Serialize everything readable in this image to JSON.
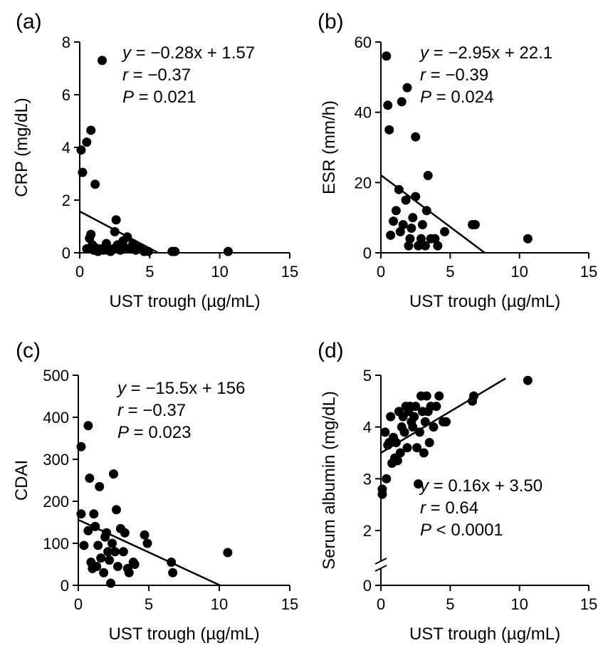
{
  "chart_data": [
    {
      "type": "scatter",
      "panel_label": "(a)",
      "xlabel": "UST trough (µg/mL)",
      "ylabel": "CRP (mg/dL)",
      "xlim": [
        0,
        15
      ],
      "ylim": [
        0,
        8
      ],
      "xticks": [
        0,
        5,
        10,
        15
      ],
      "yticks": [
        0,
        2,
        4,
        6,
        8
      ],
      "annotation": [
        {
          "italic": "y",
          "rest": " = −0.28x + 1.57"
        },
        {
          "italic": "r",
          "rest": " = −0.37"
        },
        {
          "italic": "P",
          "rest": " = 0.021"
        }
      ],
      "regression": {
        "slope": -0.28,
        "intercept": 1.57,
        "x": [
          0,
          5.6
        ]
      },
      "points": [
        [
          0.1,
          3.9
        ],
        [
          0.2,
          3.05
        ],
        [
          0.5,
          4.2
        ],
        [
          0.8,
          4.65
        ],
        [
          1.1,
          2.6
        ],
        [
          1.6,
          7.3
        ],
        [
          0.5,
          0.15
        ],
        [
          0.7,
          0.55
        ],
        [
          0.8,
          0.7
        ],
        [
          0.9,
          0.3
        ],
        [
          1.0,
          0.1
        ],
        [
          1.1,
          0.2
        ],
        [
          1.3,
          0.05
        ],
        [
          1.5,
          0.15
        ],
        [
          1.7,
          0.1
        ],
        [
          1.9,
          0.35
        ],
        [
          2.0,
          0.1
        ],
        [
          2.2,
          0.05
        ],
        [
          2.4,
          0.15
        ],
        [
          2.5,
          0.8
        ],
        [
          2.6,
          1.25
        ],
        [
          2.7,
          0.3
        ],
        [
          2.9,
          0.1
        ],
        [
          3.1,
          0.45
        ],
        [
          3.2,
          0.2
        ],
        [
          3.4,
          0.6
        ],
        [
          3.6,
          0.15
        ],
        [
          3.8,
          0.35
        ],
        [
          4.0,
          0.1
        ],
        [
          4.3,
          0.2
        ],
        [
          4.6,
          0.05
        ],
        [
          4.9,
          0.05
        ],
        [
          6.6,
          0.05
        ],
        [
          6.8,
          0.05
        ],
        [
          10.6,
          0.05
        ]
      ]
    },
    {
      "type": "scatter",
      "panel_label": "(b)",
      "xlabel": "UST trough (µg/mL)",
      "ylabel": "ESR (mm/h)",
      "xlim": [
        0,
        15
      ],
      "ylim": [
        0,
        60
      ],
      "xticks": [
        0,
        5,
        10,
        15
      ],
      "yticks": [
        0,
        20,
        40,
        60
      ],
      "annotation": [
        {
          "italic": "y",
          "rest": " = −2.95x + 22.1"
        },
        {
          "italic": "r",
          "rest": " = −0.39"
        },
        {
          "italic": "P",
          "rest": " = 0.024"
        }
      ],
      "regression": {
        "slope": -2.95,
        "intercept": 22.1,
        "x": [
          0,
          7.5
        ]
      },
      "points": [
        [
          0.4,
          56
        ],
        [
          0.5,
          42
        ],
        [
          0.6,
          35
        ],
        [
          1.5,
          43
        ],
        [
          1.9,
          47
        ],
        [
          2.5,
          33
        ],
        [
          0.7,
          5
        ],
        [
          0.9,
          9
        ],
        [
          1.1,
          12
        ],
        [
          1.3,
          18
        ],
        [
          1.4,
          6
        ],
        [
          1.6,
          8
        ],
        [
          1.8,
          15
        ],
        [
          2.0,
          2
        ],
        [
          2.1,
          4
        ],
        [
          2.2,
          7
        ],
        [
          2.3,
          10
        ],
        [
          2.5,
          16
        ],
        [
          2.7,
          2
        ],
        [
          2.9,
          4
        ],
        [
          3.0,
          8
        ],
        [
          3.2,
          2
        ],
        [
          3.3,
          12
        ],
        [
          3.4,
          22
        ],
        [
          3.6,
          4
        ],
        [
          3.9,
          4
        ],
        [
          4.1,
          2
        ],
        [
          4.6,
          6
        ],
        [
          6.6,
          8
        ],
        [
          6.8,
          8
        ],
        [
          10.6,
          4
        ]
      ]
    },
    {
      "type": "scatter",
      "panel_label": "(c)",
      "xlabel": "UST trough (µg/mL)",
      "ylabel": "CDAI",
      "xlim": [
        0,
        15
      ],
      "ylim": [
        0,
        500
      ],
      "xticks": [
        0,
        5,
        10,
        15
      ],
      "yticks": [
        0,
        100,
        200,
        300,
        400,
        500
      ],
      "annotation": [
        {
          "italic": "y",
          "rest": " = −15.5x + 156"
        },
        {
          "italic": "r",
          "rest": " = −0.37"
        },
        {
          "italic": "P",
          "rest": " = 0.023"
        }
      ],
      "regression": {
        "slope": -15.5,
        "intercept": 156,
        "x": [
          0,
          10.1
        ]
      },
      "points": [
        [
          0.2,
          330
        ],
        [
          0.2,
          170
        ],
        [
          0.4,
          95
        ],
        [
          0.7,
          380
        ],
        [
          0.8,
          255
        ],
        [
          0.7,
          130
        ],
        [
          0.9,
          55
        ],
        [
          1.0,
          40
        ],
        [
          1.1,
          170
        ],
        [
          1.2,
          140
        ],
        [
          1.3,
          45
        ],
        [
          1.4,
          95
        ],
        [
          1.5,
          235
        ],
        [
          1.6,
          65
        ],
        [
          1.8,
          30
        ],
        [
          1.9,
          115
        ],
        [
          2.0,
          125
        ],
        [
          2.1,
          80
        ],
        [
          2.2,
          60
        ],
        [
          2.3,
          5
        ],
        [
          2.4,
          100
        ],
        [
          2.5,
          265
        ],
        [
          2.6,
          80
        ],
        [
          2.7,
          180
        ],
        [
          2.8,
          45
        ],
        [
          3.0,
          135
        ],
        [
          3.2,
          80
        ],
        [
          3.3,
          125
        ],
        [
          3.5,
          40
        ],
        [
          3.6,
          30
        ],
        [
          3.9,
          55
        ],
        [
          4.0,
          50
        ],
        [
          4.7,
          120
        ],
        [
          4.9,
          100
        ],
        [
          6.6,
          55
        ],
        [
          6.7,
          30
        ],
        [
          10.6,
          78
        ]
      ]
    },
    {
      "type": "scatter",
      "panel_label": "(d)",
      "xlabel": "UST trough (µg/mL)",
      "ylabel": "Serum albumin (mg/dL)",
      "xlim": [
        0,
        15
      ],
      "ylim": [
        0,
        5
      ],
      "axis_break": [
        0,
        2
      ],
      "xticks": [
        0,
        5,
        10,
        15
      ],
      "yticks": [
        0,
        2,
        3,
        4,
        5
      ],
      "annotation": [
        {
          "italic": "y",
          "rest": " = 0.16x + 3.50"
        },
        {
          "italic": "r",
          "rest": " = 0.64"
        },
        {
          "italic": "P",
          "rest": " < 0.0001"
        }
      ],
      "regression": {
        "slope": 0.16,
        "intercept": 3.5,
        "x": [
          0,
          9
        ]
      },
      "points": [
        [
          0.1,
          2.8
        ],
        [
          0.1,
          2.7
        ],
        [
          0.3,
          3.9
        ],
        [
          0.4,
          3.0
        ],
        [
          0.5,
          3.65
        ],
        [
          0.6,
          3.7
        ],
        [
          0.7,
          4.2
        ],
        [
          0.8,
          3.3
        ],
        [
          0.9,
          3.8
        ],
        [
          1.0,
          3.4
        ],
        [
          1.1,
          3.7
        ],
        [
          1.2,
          3.35
        ],
        [
          1.3,
          4.3
        ],
        [
          1.4,
          3.5
        ],
        [
          1.5,
          4.0
        ],
        [
          1.6,
          4.2
        ],
        [
          1.7,
          3.9
        ],
        [
          1.8,
          4.4
        ],
        [
          1.9,
          3.6
        ],
        [
          2.0,
          4.3
        ],
        [
          2.1,
          4.4
        ],
        [
          2.2,
          4.1
        ],
        [
          2.3,
          4.0
        ],
        [
          2.4,
          4.2
        ],
        [
          2.5,
          4.4
        ],
        [
          2.6,
          3.6
        ],
        [
          2.7,
          2.9
        ],
        [
          2.8,
          3.9
        ],
        [
          2.9,
          4.6
        ],
        [
          3.0,
          4.3
        ],
        [
          3.1,
          3.5
        ],
        [
          3.2,
          4.1
        ],
        [
          3.3,
          4.6
        ],
        [
          3.4,
          4.3
        ],
        [
          3.5,
          3.7
        ],
        [
          3.6,
          4.4
        ],
        [
          3.8,
          4.0
        ],
        [
          4.0,
          4.4
        ],
        [
          4.2,
          4.6
        ],
        [
          4.5,
          4.1
        ],
        [
          4.7,
          4.1
        ],
        [
          6.6,
          4.5
        ],
        [
          6.7,
          4.6
        ],
        [
          10.6,
          4.9
        ]
      ]
    }
  ]
}
